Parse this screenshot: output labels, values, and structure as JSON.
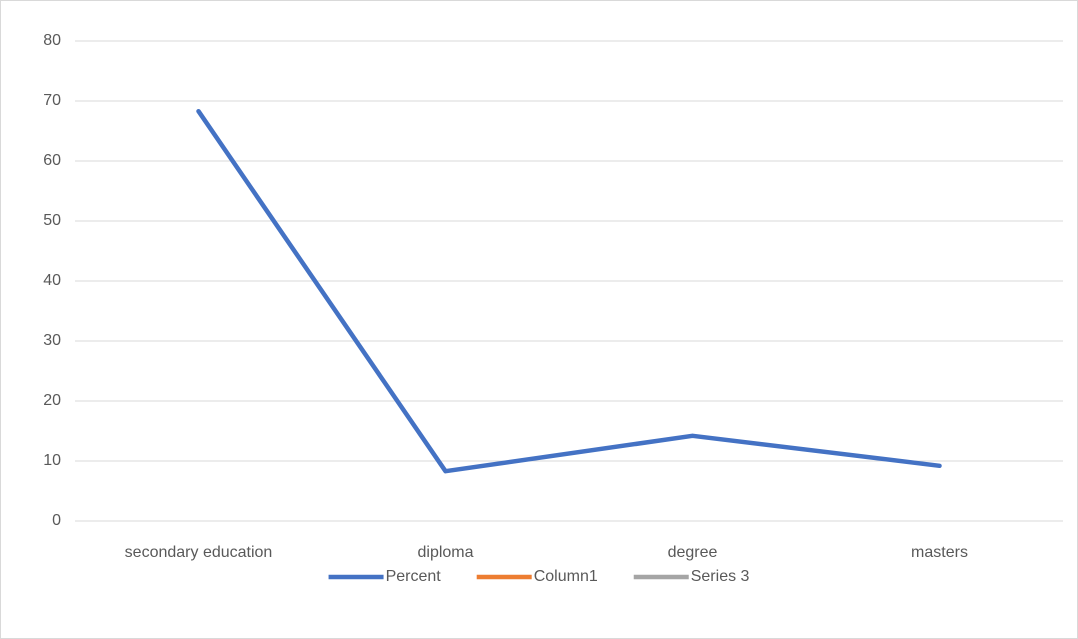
{
  "chart_data": {
    "type": "line",
    "categories": [
      "secondary education",
      "diploma",
      "degree",
      "masters"
    ],
    "series": [
      {
        "name": "Percent",
        "color": "#4472c4",
        "values": [
          68.3,
          8.3,
          14.2,
          9.2
        ]
      },
      {
        "name": "Column1",
        "color": "#ed7d31",
        "values": [
          null,
          null,
          null,
          null
        ]
      },
      {
        "name": "Series 3",
        "color": "#a5a5a5",
        "values": [
          null,
          null,
          null,
          null
        ]
      }
    ],
    "ylim": [
      0,
      80
    ],
    "yticks": [
      0,
      10,
      20,
      30,
      40,
      50,
      60,
      70,
      80
    ],
    "grid": true,
    "legend": "bottom"
  }
}
